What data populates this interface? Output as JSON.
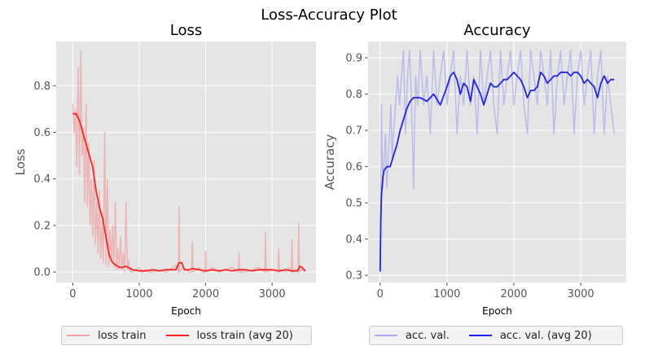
{
  "figure_title": "Loss-Accuracy Plot",
  "chart_data": [
    {
      "type": "line",
      "title": "Loss",
      "xlabel": "Epoch",
      "ylabel": "Loss",
      "xlim": [
        -250,
        3660
      ],
      "ylim": [
        -0.045,
        0.99
      ],
      "xticks": [
        0,
        1000,
        2000,
        3000
      ],
      "xtick_labels": [
        "0",
        "1000",
        "2000",
        "3000"
      ],
      "yticks": [
        0.0,
        0.2,
        0.4,
        0.6,
        0.8
      ],
      "ytick_labels": [
        "0.0",
        "0.2",
        "0.4",
        "0.6",
        "0.8"
      ],
      "grid": true,
      "legend_position": "below",
      "series": [
        {
          "name": "loss train",
          "color": "#f0a0a0",
          "opacity": 0.7,
          "x": [
            0,
            20,
            40,
            60,
            80,
            100,
            120,
            140,
            160,
            180,
            200,
            220,
            240,
            260,
            280,
            300,
            320,
            340,
            360,
            380,
            400,
            420,
            440,
            460,
            480,
            500,
            520,
            540,
            560,
            580,
            600,
            620,
            640,
            660,
            680,
            700,
            720,
            740,
            760,
            780,
            800,
            820,
            840,
            860,
            880,
            900,
            950,
            1000,
            1050,
            1100,
            1150,
            1200,
            1300,
            1400,
            1500,
            1550,
            1590,
            1600,
            1610,
            1650,
            1700,
            1750,
            1790,
            1800,
            1810,
            1850,
            1900,
            1950,
            1990,
            2000,
            2010,
            2100,
            2200,
            2300,
            2400,
            2490,
            2500,
            2510,
            2600,
            2700,
            2800,
            2890,
            2900,
            2910,
            3000,
            3090,
            3100,
            3110,
            3150,
            3200,
            3250,
            3290,
            3300,
            3310,
            3350,
            3390,
            3400,
            3410,
            3450,
            3500
          ],
          "y": [
            0.72,
            0.6,
            0.7,
            0.45,
            0.88,
            0.42,
            0.95,
            0.5,
            0.62,
            0.3,
            0.72,
            0.28,
            0.55,
            0.2,
            0.4,
            0.15,
            0.48,
            0.12,
            0.3,
            0.08,
            0.35,
            0.06,
            0.22,
            0.04,
            0.6,
            0.03,
            0.4,
            0.02,
            0.18,
            0.05,
            0.2,
            0.02,
            0.3,
            0.01,
            0.1,
            0.01,
            0.15,
            0.01,
            0.08,
            0.0,
            0.3,
            0.01,
            0.05,
            0.0,
            0.02,
            0.0,
            0.01,
            0.02,
            0.0,
            0.01,
            0.0,
            0.0,
            0.01,
            0.0,
            0.02,
            0.03,
            0.0,
            0.28,
            0.0,
            0.02,
            0.01,
            0.0,
            0.0,
            0.13,
            0.0,
            0.01,
            0.02,
            0.0,
            0.0,
            0.09,
            0.0,
            0.02,
            0.0,
            0.01,
            0.02,
            0.0,
            0.08,
            0.0,
            0.0,
            0.01,
            0.02,
            0.0,
            0.17,
            0.0,
            0.01,
            0.0,
            0.1,
            0.0,
            0.01,
            0.0,
            0.02,
            0.0,
            0.14,
            0.0,
            0.01,
            0.0,
            0.21,
            0.0,
            0.01,
            0.0
          ]
        },
        {
          "name": "loss train (avg 20)",
          "color": "#ff2222",
          "opacity": 1,
          "x": [
            0,
            50,
            100,
            150,
            200,
            250,
            300,
            350,
            400,
            450,
            500,
            550,
            600,
            650,
            700,
            750,
            800,
            900,
            1000,
            1100,
            1200,
            1300,
            1400,
            1500,
            1550,
            1600,
            1640,
            1680,
            1700,
            1750,
            1800,
            1900,
            2000,
            2100,
            2200,
            2300,
            2400,
            2500,
            2600,
            2700,
            2800,
            2900,
            3000,
            3100,
            3200,
            3300,
            3380,
            3420,
            3450,
            3500
          ],
          "y": [
            0.68,
            0.68,
            0.65,
            0.6,
            0.55,
            0.5,
            0.45,
            0.35,
            0.28,
            0.23,
            0.15,
            0.07,
            0.04,
            0.03,
            0.02,
            0.02,
            0.025,
            0.01,
            0.005,
            0.005,
            0.01,
            0.005,
            0.01,
            0.01,
            0.01,
            0.04,
            0.04,
            0.01,
            0.01,
            0.01,
            0.015,
            0.01,
            0.005,
            0.01,
            0.005,
            0.01,
            0.005,
            0.01,
            0.01,
            0.005,
            0.01,
            0.01,
            0.01,
            0.005,
            0.01,
            0.005,
            0.005,
            0.025,
            0.02,
            0.005
          ]
        }
      ]
    },
    {
      "type": "line",
      "title": "Accuracy",
      "xlabel": "Epoch",
      "ylabel": "Accuracy",
      "xlim": [
        -180,
        3680
      ],
      "ylim": [
        0.28,
        0.945
      ],
      "xticks": [
        0,
        1000,
        2000,
        3000
      ],
      "xtick_labels": [
        "0",
        "1000",
        "2000",
        "3000"
      ],
      "yticks": [
        0.3,
        0.4,
        0.5,
        0.6,
        0.7,
        0.8,
        0.9
      ],
      "ytick_labels": [
        "0.3",
        "0.4",
        "0.5",
        "0.6",
        "0.7",
        "0.8",
        "0.9"
      ],
      "grid": true,
      "legend_position": "below",
      "series": [
        {
          "name": "acc. val.",
          "color": "#aaaaee",
          "opacity": 0.7,
          "x": [
            0,
            20,
            40,
            60,
            80,
            100,
            120,
            140,
            160,
            180,
            200,
            230,
            260,
            290,
            320,
            350,
            380,
            410,
            440,
            470,
            500,
            530,
            560,
            600,
            650,
            700,
            750,
            800,
            850,
            900,
            950,
            1000,
            1050,
            1100,
            1150,
            1200,
            1250,
            1300,
            1350,
            1400,
            1450,
            1500,
            1550,
            1600,
            1650,
            1700,
            1750,
            1800,
            1850,
            1900,
            1950,
            2000,
            2050,
            2100,
            2150,
            2200,
            2250,
            2300,
            2350,
            2400,
            2450,
            2500,
            2550,
            2600,
            2650,
            2700,
            2750,
            2800,
            2850,
            2900,
            2950,
            3000,
            3050,
            3100,
            3150,
            3200,
            3250,
            3300,
            3350,
            3400,
            3450,
            3500
          ],
          "y": [
            0.31,
            0.77,
            0.54,
            0.62,
            0.69,
            0.54,
            0.62,
            0.69,
            0.77,
            0.62,
            0.69,
            0.77,
            0.85,
            0.77,
            0.85,
            0.92,
            0.69,
            0.85,
            0.92,
            0.77,
            0.54,
            0.85,
            0.77,
            0.92,
            0.77,
            0.85,
            0.69,
            0.92,
            0.77,
            0.85,
            0.92,
            0.77,
            0.85,
            0.92,
            0.69,
            0.85,
            0.77,
            0.92,
            0.77,
            0.85,
            0.69,
            0.92,
            0.77,
            0.85,
            0.92,
            0.77,
            0.69,
            0.92,
            0.77,
            0.85,
            0.92,
            0.77,
            0.85,
            0.92,
            0.77,
            0.69,
            0.92,
            0.85,
            0.77,
            0.92,
            0.85,
            0.77,
            0.92,
            0.69,
            0.85,
            0.92,
            0.77,
            0.85,
            0.92,
            0.69,
            0.85,
            0.92,
            0.77,
            0.85,
            0.92,
            0.69,
            0.85,
            0.92,
            0.69,
            0.85,
            0.77,
            0.69
          ]
        },
        {
          "name": "acc. val. (avg 20)",
          "color": "#2222ee",
          "opacity": 1,
          "x": [
            0,
            10,
            20,
            40,
            60,
            100,
            150,
            200,
            250,
            300,
            350,
            400,
            450,
            500,
            600,
            700,
            800,
            900,
            1000,
            1050,
            1100,
            1150,
            1200,
            1250,
            1300,
            1350,
            1400,
            1450,
            1500,
            1550,
            1600,
            1650,
            1700,
            1750,
            1800,
            1850,
            1900,
            1950,
            2000,
            2050,
            2100,
            2150,
            2200,
            2250,
            2300,
            2350,
            2400,
            2450,
            2500,
            2550,
            2600,
            2650,
            2700,
            2750,
            2800,
            2850,
            2900,
            2950,
            3000,
            3050,
            3100,
            3150,
            3200,
            3250,
            3300,
            3350,
            3400,
            3450,
            3500
          ],
          "y": [
            0.31,
            0.45,
            0.52,
            0.57,
            0.59,
            0.6,
            0.6,
            0.63,
            0.66,
            0.7,
            0.73,
            0.76,
            0.78,
            0.79,
            0.79,
            0.78,
            0.8,
            0.77,
            0.82,
            0.85,
            0.86,
            0.84,
            0.8,
            0.83,
            0.82,
            0.78,
            0.84,
            0.82,
            0.8,
            0.77,
            0.8,
            0.83,
            0.82,
            0.82,
            0.83,
            0.84,
            0.84,
            0.85,
            0.86,
            0.85,
            0.84,
            0.82,
            0.79,
            0.81,
            0.81,
            0.82,
            0.86,
            0.85,
            0.83,
            0.84,
            0.85,
            0.85,
            0.86,
            0.86,
            0.86,
            0.85,
            0.86,
            0.86,
            0.85,
            0.83,
            0.84,
            0.83,
            0.82,
            0.79,
            0.83,
            0.85,
            0.83,
            0.84,
            0.84
          ]
        }
      ]
    }
  ]
}
